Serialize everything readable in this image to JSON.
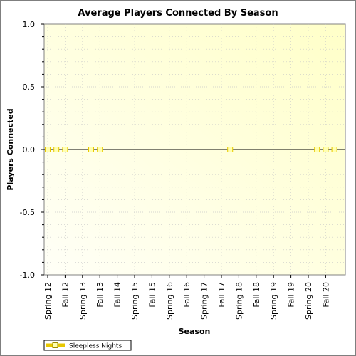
{
  "chart_data": {
    "type": "line",
    "title": "Average Players Connected By Season",
    "xlabel": "Season",
    "ylabel": "Players Connected",
    "ylim": [
      -1.0,
      1.0
    ],
    "yticks": [
      "1.0",
      "0.5",
      "0.0",
      "-0.5",
      "-1.0"
    ],
    "ytick_values": [
      1.0,
      0.5,
      0.0,
      -0.5,
      -1.0
    ],
    "categories": [
      "Spring 12",
      "Fall 12",
      "Spring 13",
      "Fall 13",
      "Fall 14",
      "Spring 15",
      "Fall 15",
      "Spring 16",
      "Fall 16",
      "Spring 17",
      "Fall 17",
      "Spring 18",
      "Fall 18",
      "Spring 19",
      "Fall 19",
      "Spring 20",
      "Fall 20"
    ],
    "grid": true,
    "legend_position": "bottom-left",
    "series": [
      {
        "name": "Sleepless Nights",
        "color": "#e8c800",
        "marker": "square",
        "points": [
          {
            "x": 0.0,
            "y": 0.0
          },
          {
            "x": 0.5,
            "y": 0.0
          },
          {
            "x": 1.0,
            "y": 0.0
          },
          {
            "x": 2.5,
            "y": 0.0
          },
          {
            "x": 3.0,
            "y": 0.0
          },
          {
            "x": 10.5,
            "y": 0.0
          },
          {
            "x": 15.5,
            "y": 0.0
          },
          {
            "x": 16.0,
            "y": 0.0
          },
          {
            "x": 16.5,
            "y": 0.0
          }
        ]
      }
    ]
  },
  "colors": {
    "plot_bg_start": "#fffff7",
    "plot_bg_end": "#ffffc8",
    "grid": "#c8c8c8",
    "marker_fill": "#ffffb0"
  }
}
